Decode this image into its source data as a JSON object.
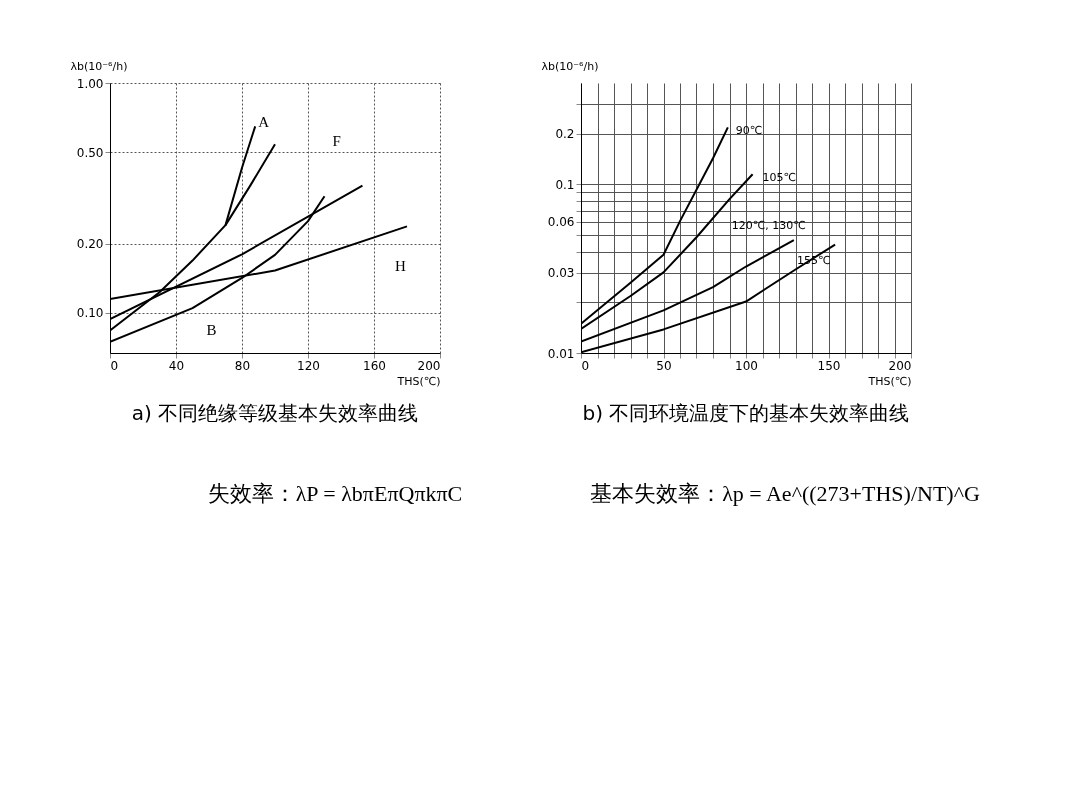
{
  "chart_data": [
    {
      "type": "line",
      "title": "a) 不同绝缘等级基本失效率曲线",
      "xlabel": "THS(℃)",
      "ylabel": "λb(10⁻⁶/h)",
      "log": "y",
      "xlim": [
        0,
        200
      ],
      "xticks": [
        0,
        40,
        80,
        120,
        160,
        200
      ],
      "ylim": [
        0.067,
        1.0
      ],
      "yticks": [
        {
          "value": 0.1,
          "label": "0.10"
        },
        {
          "value": 0.2,
          "label": "0.20"
        },
        {
          "value": 0.5,
          "label": "0.50"
        },
        {
          "value": 1.0,
          "label": "1.00"
        }
      ],
      "grid": true,
      "legend": false,
      "series": [
        {
          "name": "A",
          "color": "#000000",
          "x": [
            0,
            30,
            50,
            70,
            80,
            88
          ],
          "values": [
            0.084,
            0.123,
            0.169,
            0.241,
            0.428,
            0.648
          ]
        },
        {
          "color": "#000000",
          "x": [
            70,
            85,
            100
          ],
          "values": [
            0.241,
            0.358,
            0.542
          ]
        },
        {
          "name": "F",
          "color": "#000000",
          "x": [
            0,
            80,
            153
          ],
          "values": [
            0.094,
            0.18,
            0.358
          ]
        },
        {
          "name": "H",
          "color": "#000000",
          "x": [
            0,
            100,
            180
          ],
          "values": [
            0.115,
            0.153,
            0.238
          ]
        },
        {
          "name": "B",
          "color": "#000000",
          "x": [
            0,
            50,
            80,
            100,
            120,
            130
          ],
          "values": [
            0.075,
            0.105,
            0.142,
            0.179,
            0.251,
            0.322
          ]
        }
      ]
    },
    {
      "type": "line",
      "title": "b) 不同环境温度下的基本失效率曲线",
      "xlabel": "THS(℃)",
      "ylabel": "λb(10⁻⁶/h)",
      "log": "y",
      "xlim": [
        0,
        200
      ],
      "xticks": [
        0,
        {
          "value": 10,
          "label": null
        },
        {
          "value": 20,
          "label": null
        },
        {
          "value": 30,
          "label": null
        },
        {
          "value": 40,
          "label": null
        },
        50,
        {
          "value": 60,
          "label": null
        },
        {
          "value": 70,
          "label": null
        },
        {
          "value": 80,
          "label": null
        },
        {
          "value": 90,
          "label": null
        },
        100,
        {
          "value": 110,
          "label": null
        },
        {
          "value": 120,
          "label": null
        },
        {
          "value": 130,
          "label": null
        },
        {
          "value": 140,
          "label": null
        },
        150,
        {
          "value": 160,
          "label": null
        },
        {
          "value": 170,
          "label": null
        },
        {
          "value": 180,
          "label": null
        },
        {
          "value": 190,
          "label": null
        },
        200
      ],
      "ylim": [
        0.01,
        0.4
      ],
      "yticks": [
        0.01,
        {
          "value": 0.02,
          "label": null
        },
        0.03,
        {
          "value": 0.04,
          "label": null
        },
        {
          "value": 0.05,
          "label": null
        },
        0.06,
        {
          "value": 0.07,
          "label": null
        },
        {
          "value": 0.08,
          "label": null
        },
        {
          "value": 0.09,
          "label": null
        },
        0.1,
        0.2,
        {
          "value": 0.3,
          "label": null
        }
      ],
      "grid": true,
      "legend": false,
      "series": [
        {
          "name": "90℃",
          "color": "#000000",
          "x": [
            0,
            30,
            50,
            60,
            80,
            89
          ],
          "values": [
            0.0149,
            0.0261,
            0.0383,
            0.0606,
            0.143,
            0.218
          ]
        },
        {
          "name": "105℃",
          "color": "#000000",
          "x": [
            0,
            30,
            50,
            70,
            90,
            104
          ],
          "values": [
            0.0139,
            0.0218,
            0.0301,
            0.0486,
            0.0818,
            0.115
          ]
        },
        {
          "name": "120℃, 130℃",
          "color": "#000000",
          "x": [
            0,
            50,
            80,
            100,
            129
          ],
          "values": [
            0.0117,
            0.0179,
            0.0246,
            0.0326,
            0.0467
          ]
        },
        {
          "name": "155℃",
          "color": "#000000",
          "x": [
            0,
            50,
            100,
            130,
            154
          ],
          "values": [
            0.0101,
            0.0138,
            0.0202,
            0.0313,
            0.044
          ]
        }
      ]
    },
    {
      "type": "other",
      "annotations": [
        "失效率：λP = λbπEπQπkπC",
        "基本失效率：λp = Ae^((273+THS)/NT)^G"
      ]
    }
  ]
}
